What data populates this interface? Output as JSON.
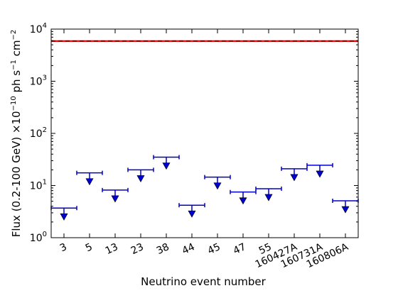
{
  "chart_data": {
    "type": "scatter",
    "xlabel": "Neutrino event number",
    "ylabel_text": "Flux (0.2-100 GeV) ×10",
    "ylabel_exp1": "−10",
    "ylabel_mid": " ph s",
    "ylabel_exp2": "−1",
    "ylabel_end": " cm",
    "ylabel_exp3": "−2",
    "yscale": "log",
    "ylim": [
      1,
      10000
    ],
    "yticks": [
      {
        "base": "10",
        "exp": "0",
        "value": 1
      },
      {
        "base": "10",
        "exp": "1",
        "value": 10
      },
      {
        "base": "10",
        "exp": "2",
        "value": 100
      },
      {
        "base": "10",
        "exp": "3",
        "value": 1000
      },
      {
        "base": "10",
        "exp": "4",
        "value": 10000
      }
    ],
    "categories": [
      "3",
      "5",
      "13",
      "23",
      "38",
      "44",
      "45",
      "47",
      "55",
      "160427A",
      "160731A",
      "160806A"
    ],
    "upper_limits": [
      3.7,
      17.5,
      8.2,
      20.0,
      35.0,
      4.2,
      14.5,
      7.5,
      8.7,
      21.0,
      24.5,
      5.1
    ],
    "reference_line": {
      "value": 5900,
      "color": "#ff0000"
    },
    "marker_color": "#0000cc",
    "grid": false
  }
}
